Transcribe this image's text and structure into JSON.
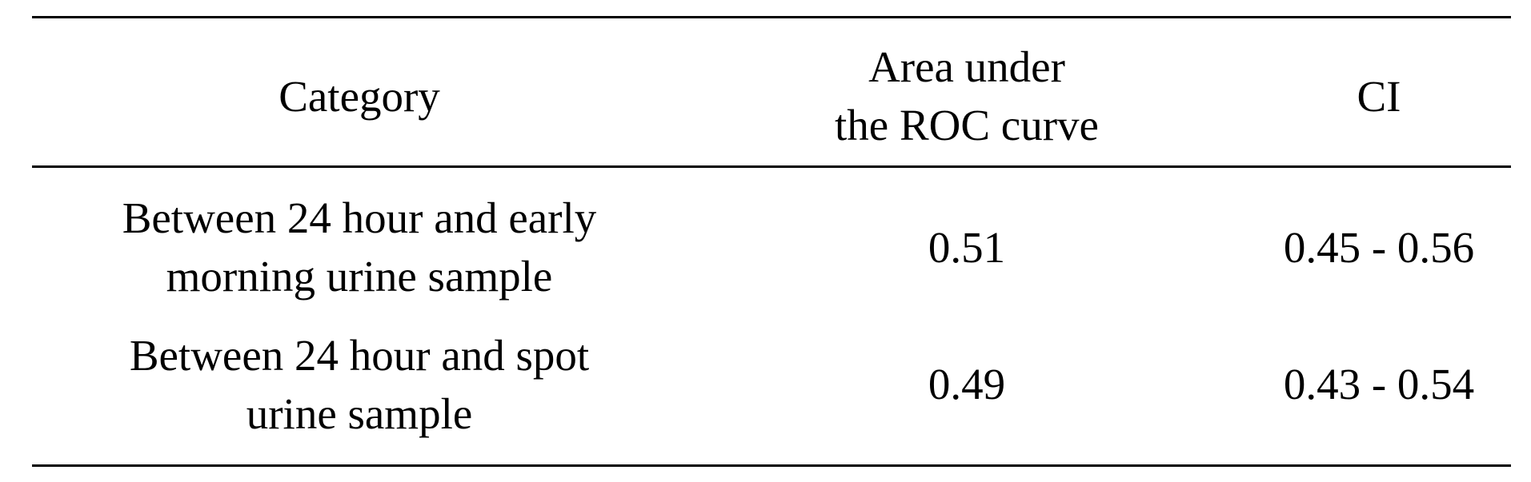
{
  "table": {
    "headers": {
      "category": "Category",
      "area_line1": "Area under",
      "area_line2": "the ROC curve",
      "ci": "CI"
    },
    "rows": [
      {
        "category_line1": "Between 24 hour and early",
        "category_line2": "morning urine sample",
        "area": "0.51",
        "ci": "0.45 - 0.56"
      },
      {
        "category_line1": "Between 24 hour and spot",
        "category_line2": "urine sample",
        "area": "0.49",
        "ci": "0.43 - 0.54"
      }
    ]
  }
}
